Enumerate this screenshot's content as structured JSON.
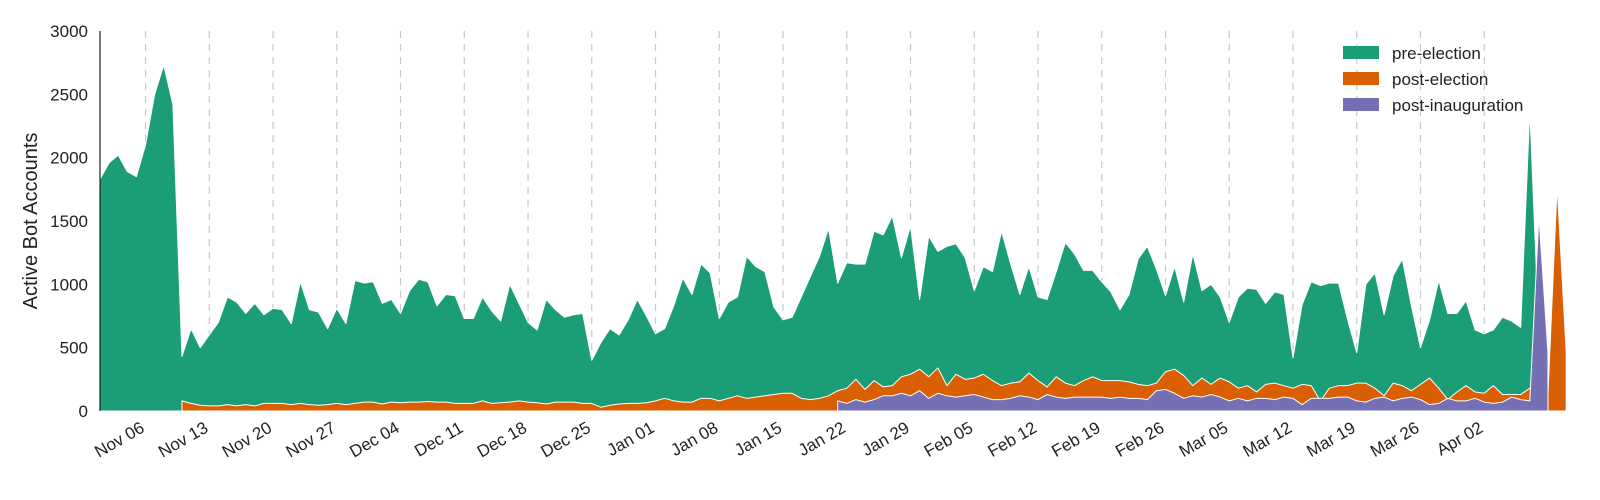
{
  "chart_data": {
    "type": "area",
    "stacked": false,
    "title": "",
    "xlabel": "",
    "ylabel": "Active Bot Accounts",
    "ylim": [
      0,
      3000
    ],
    "yticks": [
      0,
      500,
      1000,
      1500,
      2000,
      2500,
      3000
    ],
    "x_start": "2016-11-01",
    "x_end": "2017-04-09",
    "xticks": [
      {
        "date": "2016-11-06",
        "label": "Nov 06"
      },
      {
        "date": "2016-11-13",
        "label": "Nov 13"
      },
      {
        "date": "2016-11-20",
        "label": "Nov 20"
      },
      {
        "date": "2016-11-27",
        "label": "Nov 27"
      },
      {
        "date": "2016-12-04",
        "label": "Dec 04"
      },
      {
        "date": "2016-12-11",
        "label": "Dec 11"
      },
      {
        "date": "2016-12-18",
        "label": "Dec 18"
      },
      {
        "date": "2016-12-25",
        "label": "Dec 25"
      },
      {
        "date": "2017-01-01",
        "label": "Jan 01"
      },
      {
        "date": "2017-01-08",
        "label": "Jan 08"
      },
      {
        "date": "2017-01-15",
        "label": "Jan 15"
      },
      {
        "date": "2017-01-22",
        "label": "Jan 22"
      },
      {
        "date": "2017-01-29",
        "label": "Jan 29"
      },
      {
        "date": "2017-02-05",
        "label": "Feb 05"
      },
      {
        "date": "2017-02-12",
        "label": "Feb 12"
      },
      {
        "date": "2017-02-19",
        "label": "Feb 19"
      },
      {
        "date": "2017-02-26",
        "label": "Feb 26"
      },
      {
        "date": "2017-03-05",
        "label": "Mar 05"
      },
      {
        "date": "2017-03-12",
        "label": "Mar 12"
      },
      {
        "date": "2017-03-19",
        "label": "Mar 19"
      },
      {
        "date": "2017-03-26",
        "label": "Mar 26"
      },
      {
        "date": "2017-04-02",
        "label": "Apr 02"
      }
    ],
    "grid": {
      "x": true,
      "y": false,
      "style": "dashed"
    },
    "legend": {
      "position": "top-right"
    },
    "series": [
      {
        "name": "pre-election",
        "color": "#1b9e77",
        "start": "2016-11-01",
        "values": [
          1830,
          1960,
          2020,
          1890,
          1850,
          2100,
          2500,
          2730,
          2420,
          430,
          650,
          500,
          600,
          700,
          900,
          860,
          770,
          850,
          760,
          810,
          800,
          690,
          1020,
          800,
          780,
          650,
          810,
          690,
          1030,
          1010,
          1020,
          850,
          880,
          770,
          950,
          1040,
          1020,
          830,
          920,
          910,
          730,
          730,
          900,
          790,
          710,
          1000,
          850,
          700,
          640,
          880,
          800,
          740,
          760,
          770,
          400,
          540,
          650,
          600,
          720,
          880,
          750,
          610,
          650,
          830,
          1050,
          920,
          1160,
          1090,
          730,
          860,
          900,
          1220,
          1140,
          1100,
          820,
          720,
          740,
          900,
          1060,
          1220,
          1440,
          1010,
          1170,
          1160,
          1160,
          1420,
          1390,
          1540,
          1210,
          1460,
          880,
          1380,
          1260,
          1300,
          1320,
          1210,
          950,
          1140,
          1100,
          1420,
          1160,
          920,
          1140,
          900,
          880,
          1100,
          1330,
          1240,
          1110,
          1110,
          1020,
          940,
          800,
          920,
          1200,
          1300,
          1120,
          910,
          1140,
          860,
          1240,
          950,
          1000,
          900,
          700,
          900,
          970,
          960,
          850,
          940,
          920,
          420,
          840,
          1020,
          990,
          1010,
          1010,
          720,
          460,
          1000,
          1090,
          760,
          1070,
          1200,
          830,
          500,
          720,
          1030,
          770,
          770,
          870,
          640,
          610,
          640,
          740,
          710,
          660,
          2380,
          620
        ]
      },
      {
        "name": "post-election",
        "color": "#d95f02",
        "start": "2016-11-10",
        "values": [
          80,
          60,
          45,
          40,
          40,
          50,
          40,
          50,
          40,
          60,
          60,
          60,
          50,
          60,
          50,
          45,
          50,
          60,
          50,
          60,
          70,
          70,
          55,
          70,
          65,
          70,
          70,
          75,
          70,
          70,
          60,
          60,
          60,
          80,
          60,
          65,
          70,
          80,
          70,
          65,
          55,
          70,
          70,
          70,
          60,
          60,
          30,
          45,
          55,
          60,
          60,
          65,
          80,
          100,
          80,
          70,
          70,
          100,
          100,
          80,
          100,
          120,
          100,
          110,
          120,
          130,
          140,
          140,
          100,
          90,
          100,
          120,
          160,
          180,
          250,
          170,
          240,
          190,
          200,
          270,
          290,
          330,
          270,
          340,
          200,
          290,
          250,
          260,
          290,
          240,
          200,
          220,
          230,
          300,
          240,
          190,
          270,
          220,
          200,
          240,
          270,
          240,
          240,
          240,
          230,
          210,
          200,
          220,
          310,
          330,
          280,
          200,
          260,
          210,
          260,
          230,
          180,
          200,
          150,
          210,
          220,
          200,
          180,
          210,
          200,
          80,
          180,
          200,
          200,
          220,
          220,
          180,
          120,
          220,
          200,
          160,
          210,
          260,
          180,
          90,
          150,
          200,
          150,
          140,
          200,
          130,
          130,
          130,
          180,
          160,
          140,
          1780,
          460
        ]
      },
      {
        "name": "post-inauguration",
        "color": "#7570b3",
        "start": "2017-01-21",
        "values": [
          80,
          60,
          90,
          70,
          90,
          120,
          120,
          140,
          120,
          160,
          100,
          140,
          120,
          110,
          120,
          130,
          110,
          90,
          90,
          100,
          120,
          110,
          90,
          130,
          110,
          100,
          110,
          110,
          110,
          110,
          100,
          110,
          100,
          100,
          90,
          160,
          170,
          140,
          100,
          120,
          110,
          130,
          110,
          80,
          100,
          80,
          100,
          100,
          90,
          110,
          100,
          50,
          100,
          100,
          100,
          110,
          110,
          80,
          70,
          100,
          110,
          80,
          100,
          110,
          90,
          50,
          60,
          100,
          80,
          80,
          100,
          70,
          60,
          70,
          110,
          90,
          80,
          1540,
          460
        ]
      }
    ]
  }
}
